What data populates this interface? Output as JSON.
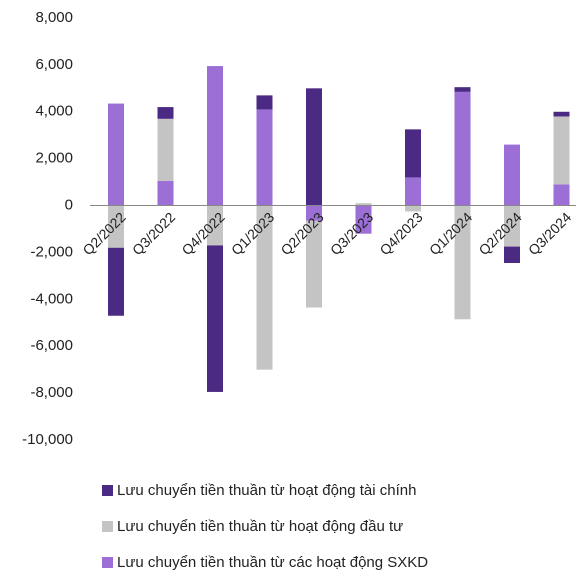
{
  "chart_data": {
    "type": "stacked_bar",
    "categories": [
      "Q2/2022",
      "Q3/2022",
      "Q4/2022",
      "Q1/2023",
      "Q2/2023",
      "Q3/2023",
      "Q4/2023",
      "Q1/2024",
      "Q2/2024",
      "Q3/2024"
    ],
    "series": [
      {
        "name": "Lưu chuyển tiền thuần từ hoạt động tài chính",
        "color": "#4b2a84",
        "values": [
          -2900,
          500,
          -6250,
          600,
          5000,
          0,
          2050,
          200,
          -700,
          200
        ]
      },
      {
        "name": "Lưu chuyển tiền thuần từ hoạt động đầu tư",
        "color": "#c4c4c4",
        "values": [
          -1800,
          2650,
          -1700,
          -7000,
          -3700,
          100,
          -250,
          -4850,
          -1750,
          2900
        ]
      },
      {
        "name": "Lưu chuyển tiền thuần từ các hoạt động SXKD",
        "color": "#9b6fd6",
        "values": [
          4350,
          1050,
          5950,
          4100,
          -650,
          -1200,
          1200,
          4850,
          2600,
          900
        ]
      }
    ],
    "ylim": [
      -10000,
      8000
    ],
    "yticks": [
      {
        "value": -10000,
        "label": "-10,000"
      },
      {
        "value": -8000,
        "label": "-8,000"
      },
      {
        "value": -6000,
        "label": "-6,000"
      },
      {
        "value": -4000,
        "label": "-4,000"
      },
      {
        "value": -2000,
        "label": "-2,000"
      },
      0,
      {
        "value": 2000,
        "label": "2,000"
      },
      {
        "value": 4000,
        "label": "4,000"
      },
      {
        "value": 6000,
        "label": "6,000"
      },
      {
        "value": 8000,
        "label": "8,000"
      }
    ],
    "legend": "bottom"
  }
}
